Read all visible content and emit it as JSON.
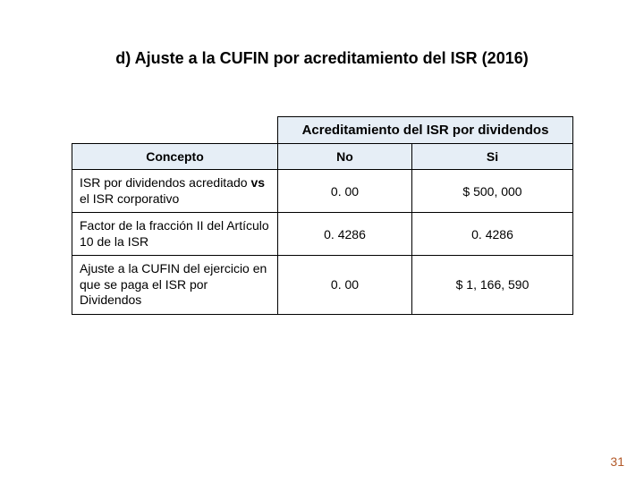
{
  "title": "d)  Ajuste a la CUFIN por acreditamiento del ISR (2016)",
  "table": {
    "superheader": "Acreditamiento del ISR por dividendos",
    "col_concept": "Concepto",
    "col_no": "No",
    "col_si": "Si",
    "header_bg": "#e6eef6",
    "border_color": "#000000",
    "rows": [
      {
        "concept_prefix": "ISR por dividendos acreditado ",
        "concept_bold": "vs",
        "concept_suffix": " el ISR corporativo",
        "no": "0. 00",
        "si": "$  500, 000"
      },
      {
        "concept_prefix": "Factor de la fracción II del Artículo 10 de la ISR",
        "concept_bold": "",
        "concept_suffix": "",
        "no": "0. 4286",
        "si": "0. 4286"
      },
      {
        "concept_prefix": "Ajuste a la CUFIN del ejercicio en que se paga el ISR por Dividendos",
        "concept_bold": "",
        "concept_suffix": "",
        "no": "0. 00",
        "si": "$  1, 166, 590"
      }
    ]
  },
  "page_number": "31",
  "page_number_color": "#b35a2a",
  "font_family": "Arial"
}
